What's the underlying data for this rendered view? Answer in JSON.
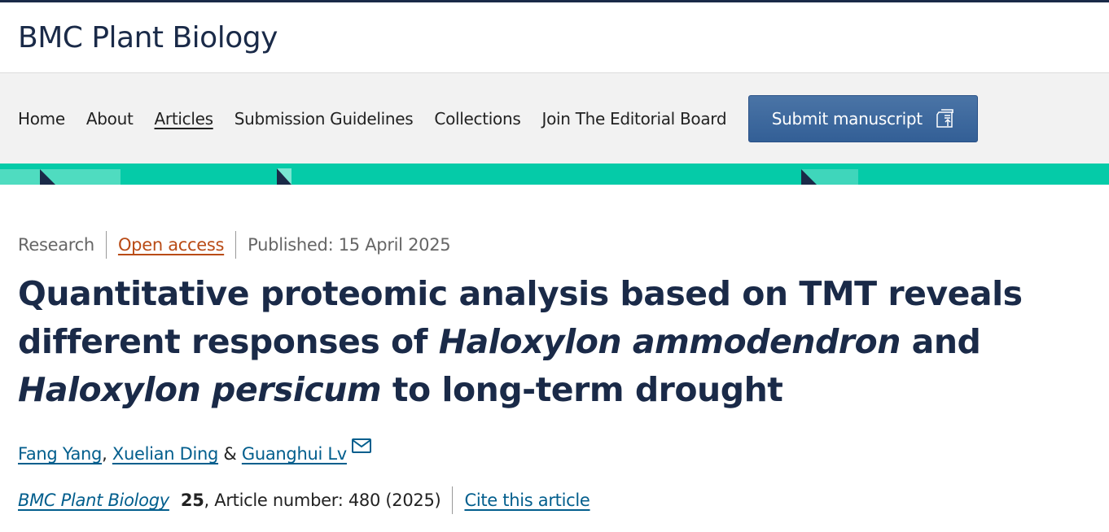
{
  "journal": {
    "name": "BMC Plant Biology"
  },
  "nav": {
    "items": [
      {
        "label": "Home"
      },
      {
        "label": "About"
      },
      {
        "label": "Articles",
        "active": true
      },
      {
        "label": "Submission Guidelines"
      },
      {
        "label": "Collections"
      },
      {
        "label": "Join The Editorial Board"
      }
    ],
    "submit_label": "Submit manuscript",
    "submit_icon": "submit-upload-icon"
  },
  "colors": {
    "brand": "#1a2a48",
    "banner": "#05cba8",
    "button": "#3a6aa0",
    "link": "#025e8d",
    "open_access": "#b94b16"
  },
  "article": {
    "type": "Research",
    "access": "Open access",
    "published": "Published: 15 April 2025",
    "title_parts": {
      "a": "Quantitative proteomic analysis based on TMT reveals different responses of ",
      "b": "Haloxylon ammodendron",
      "c": " and ",
      "d": "Haloxylon persicum",
      "e": " to long-term drought"
    },
    "authors": [
      {
        "name": "Fang Yang"
      },
      {
        "name": "Xuelian Ding"
      },
      {
        "name": "Guanghui Lv",
        "contact": true
      }
    ],
    "author_sep1": ", ",
    "author_sep2": " & ",
    "citation": {
      "journal": "BMC Plant Biology",
      "volume": "25",
      "article_number": ", Article number: 480 (2025)",
      "cite_label": "Cite this article"
    }
  }
}
